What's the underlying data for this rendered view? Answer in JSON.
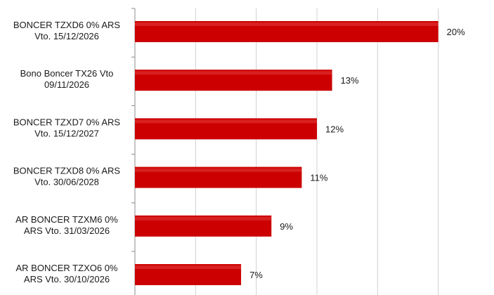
{
  "chart_data": {
    "type": "bar",
    "orientation": "horizontal",
    "categories": [
      [
        "BONCER TZXD6 0% ARS",
        "Vto. 15/12/2026"
      ],
      [
        "Bono Boncer TX26 Vto",
        "09/11/2026"
      ],
      [
        "BONCER TZXD7 0% ARS",
        "Vto. 15/12/2027"
      ],
      [
        "BONCER TZXD8 0% ARS",
        "Vto. 30/06/2028"
      ],
      [
        "AR BONCER TZXM6 0%",
        "ARS Vto. 31/03/2026"
      ],
      [
        "AR BONCER TZXO6 0%",
        "ARS Vto. 30/10/2026"
      ]
    ],
    "values": [
      20,
      13,
      12,
      11,
      9,
      7
    ],
    "data_labels": [
      "20%",
      "13%",
      "12%",
      "11%",
      "9%",
      "7%"
    ],
    "xlim": [
      0,
      24
    ],
    "grid": true,
    "bar_color": "#cc0000",
    "title": "",
    "xlabel": "",
    "ylabel": ""
  }
}
